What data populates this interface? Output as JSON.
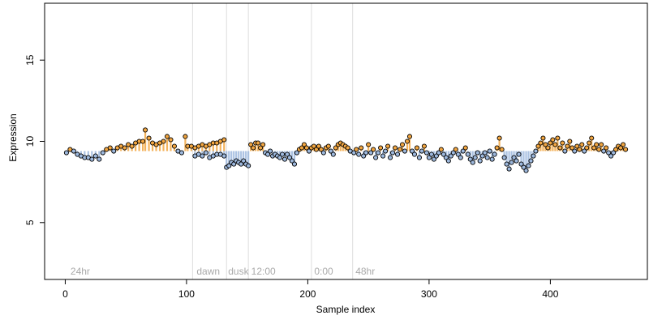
{
  "chart_data": {
    "type": "scatter",
    "xlabel": "Sample index",
    "ylabel": "Expression",
    "xlim": [
      -17,
      480
    ],
    "ylim": [
      1.5,
      18.5
    ],
    "x_ticks": [
      0,
      100,
      200,
      300,
      400
    ],
    "y_ticks": [
      5,
      10,
      15
    ],
    "grid": false,
    "vertical_lines": [
      105,
      133,
      151,
      203,
      237
    ],
    "annotations": [
      {
        "text": "24hr",
        "x": 3
      },
      {
        "text": "dawn",
        "x": 107
      },
      {
        "text": "dusk",
        "x": 133
      },
      {
        "text": "12:00",
        "x": 152
      },
      {
        "text": "0:00",
        "x": 204
      },
      {
        "text": "48hr",
        "x": 238
      }
    ],
    "annotation_y": 2.0,
    "colors": {
      "low": "#9db8dd",
      "high": "#f2a641",
      "outline": "#000000",
      "vline": "#dddddd"
    },
    "series": [
      {
        "marker": "open-circle",
        "points": [
          [
            1,
            9.3
          ],
          [
            4,
            9.5
          ],
          [
            7,
            9.4
          ],
          [
            10,
            9.2
          ],
          [
            13,
            9.1
          ],
          [
            16,
            9.0
          ],
          [
            19,
            9.0
          ],
          [
            22,
            8.9
          ],
          [
            25,
            9.1
          ],
          [
            28,
            8.9
          ],
          [
            31,
            9.3
          ],
          [
            34,
            9.5
          ],
          [
            37,
            9.6
          ],
          [
            40,
            9.4
          ],
          [
            43,
            9.6
          ],
          [
            46,
            9.7
          ],
          [
            49,
            9.6
          ],
          [
            52,
            9.8
          ],
          [
            55,
            9.7
          ],
          [
            58,
            9.9
          ],
          [
            61,
            10.0
          ],
          [
            64,
            10.0
          ],
          [
            66,
            10.7
          ],
          [
            69,
            10.2
          ],
          [
            72,
            9.9
          ],
          [
            75,
            9.8
          ],
          [
            78,
            9.9
          ],
          [
            81,
            10.0
          ],
          [
            84,
            10.3
          ],
          [
            87,
            10.1
          ],
          [
            90,
            9.7
          ],
          [
            93,
            9.4
          ],
          [
            96,
            9.3
          ],
          [
            99,
            10.3
          ],
          [
            101,
            9.7
          ],
          [
            104,
            9.7
          ],
          [
            107,
            9.6
          ],
          [
            110,
            9.7
          ],
          [
            113,
            9.8
          ],
          [
            116,
            9.7
          ],
          [
            119,
            9.8
          ],
          [
            122,
            9.9
          ],
          [
            125,
            9.9
          ],
          [
            128,
            10.0
          ],
          [
            131,
            10.1
          ],
          [
            107,
            9.1
          ],
          [
            110,
            9.2
          ],
          [
            113,
            9.1
          ],
          [
            116,
            9.3
          ],
          [
            119,
            9.0
          ],
          [
            122,
            9.1
          ],
          [
            125,
            9.2
          ],
          [
            128,
            9.2
          ],
          [
            131,
            9.1
          ],
          [
            133,
            8.4
          ],
          [
            135,
            8.5
          ],
          [
            137,
            8.7
          ],
          [
            139,
            8.6
          ],
          [
            141,
            8.8
          ],
          [
            143,
            8.7
          ],
          [
            145,
            8.6
          ],
          [
            147,
            8.8
          ],
          [
            149,
            8.6
          ],
          [
            151,
            8.5
          ],
          [
            153,
            9.8
          ],
          [
            155,
            9.6
          ],
          [
            157,
            9.9
          ],
          [
            159,
            9.9
          ],
          [
            161,
            9.6
          ],
          [
            163,
            9.8
          ],
          [
            165,
            9.3
          ],
          [
            167,
            9.2
          ],
          [
            169,
            9.4
          ],
          [
            171,
            9.1
          ],
          [
            173,
            9.2
          ],
          [
            175,
            9.1
          ],
          [
            177,
            9.0
          ],
          [
            179,
            9.2
          ],
          [
            181,
            8.9
          ],
          [
            183,
            9.2
          ],
          [
            185,
            9.0
          ],
          [
            187,
            8.8
          ],
          [
            189,
            8.6
          ],
          [
            191,
            9.3
          ],
          [
            193,
            9.5
          ],
          [
            195,
            9.6
          ],
          [
            197,
            9.8
          ],
          [
            199,
            9.6
          ],
          [
            201,
            9.4
          ],
          [
            203,
            9.6
          ],
          [
            205,
            9.7
          ],
          [
            207,
            9.5
          ],
          [
            209,
            9.7
          ],
          [
            211,
            9.5
          ],
          [
            213,
            9.3
          ],
          [
            215,
            9.6
          ],
          [
            217,
            9.7
          ],
          [
            219,
            9.4
          ],
          [
            221,
            9.2
          ],
          [
            223,
            9.6
          ],
          [
            225,
            9.8
          ],
          [
            227,
            9.9
          ],
          [
            229,
            9.8
          ],
          [
            231,
            9.7
          ],
          [
            233,
            9.6
          ],
          [
            235,
            9.4
          ],
          [
            238,
            9.3
          ],
          [
            240,
            9.5
          ],
          [
            242,
            9.2
          ],
          [
            244,
            9.6
          ],
          [
            246,
            9.1
          ],
          [
            248,
            9.3
          ],
          [
            250,
            9.8
          ],
          [
            252,
            9.3
          ],
          [
            254,
            9.5
          ],
          [
            256,
            9.0
          ],
          [
            258,
            9.3
          ],
          [
            260,
            9.6
          ],
          [
            262,
            9.1
          ],
          [
            264,
            9.4
          ],
          [
            266,
            9.7
          ],
          [
            268,
            9.0
          ],
          [
            270,
            9.3
          ],
          [
            272,
            9.6
          ],
          [
            274,
            9.2
          ],
          [
            276,
            9.5
          ],
          [
            278,
            9.8
          ],
          [
            280,
            9.4
          ],
          [
            282,
            10.0
          ],
          [
            284,
            10.3
          ],
          [
            286,
            9.4
          ],
          [
            288,
            9.2
          ],
          [
            290,
            9.6
          ],
          [
            292,
            9.0
          ],
          [
            294,
            9.4
          ],
          [
            296,
            9.7
          ],
          [
            298,
            9.3
          ],
          [
            300,
            9.0
          ],
          [
            302,
            9.2
          ],
          [
            304,
            8.9
          ],
          [
            306,
            9.1
          ],
          [
            308,
            9.3
          ],
          [
            310,
            9.5
          ],
          [
            312,
            9.2
          ],
          [
            314,
            9.0
          ],
          [
            316,
            8.8
          ],
          [
            318,
            9.1
          ],
          [
            320,
            9.3
          ],
          [
            322,
            9.5
          ],
          [
            324,
            9.2
          ],
          [
            326,
            9.0
          ],
          [
            328,
            9.4
          ],
          [
            330,
            9.6
          ],
          [
            332,
            9.2
          ],
          [
            334,
            8.9
          ],
          [
            336,
            8.7
          ],
          [
            338,
            9.0
          ],
          [
            340,
            9.3
          ],
          [
            342,
            8.8
          ],
          [
            344,
            9.1
          ],
          [
            346,
            9.3
          ],
          [
            348,
            9.0
          ],
          [
            350,
            9.4
          ],
          [
            352,
            8.9
          ],
          [
            354,
            9.2
          ],
          [
            356,
            9.6
          ],
          [
            358,
            10.2
          ],
          [
            360,
            9.5
          ],
          [
            362,
            9.0
          ],
          [
            364,
            8.6
          ],
          [
            366,
            8.3
          ],
          [
            368,
            8.7
          ],
          [
            370,
            9.0
          ],
          [
            372,
            8.8
          ],
          [
            374,
            9.2
          ],
          [
            376,
            8.6
          ],
          [
            378,
            8.4
          ],
          [
            380,
            8.2
          ],
          [
            382,
            8.5
          ],
          [
            384,
            8.8
          ],
          [
            386,
            9.1
          ],
          [
            388,
            9.4
          ],
          [
            390,
            9.7
          ],
          [
            392,
            9.9
          ],
          [
            394,
            10.2
          ],
          [
            396,
            9.8
          ],
          [
            398,
            9.6
          ],
          [
            400,
            9.9
          ],
          [
            402,
            10.1
          ],
          [
            404,
            9.8
          ],
          [
            406,
            10.2
          ],
          [
            408,
            9.6
          ],
          [
            410,
            9.9
          ],
          [
            412,
            9.4
          ],
          [
            414,
            9.7
          ],
          [
            416,
            10.0
          ],
          [
            418,
            9.6
          ],
          [
            420,
            9.4
          ],
          [
            422,
            9.7
          ],
          [
            424,
            9.5
          ],
          [
            426,
            9.8
          ],
          [
            428,
            9.4
          ],
          [
            430,
            9.6
          ],
          [
            432,
            9.9
          ],
          [
            434,
            10.2
          ],
          [
            436,
            9.6
          ],
          [
            438,
            9.8
          ],
          [
            440,
            9.5
          ],
          [
            442,
            9.8
          ],
          [
            444,
            9.4
          ],
          [
            446,
            9.6
          ],
          [
            448,
            9.3
          ],
          [
            450,
            9.1
          ],
          [
            452,
            9.3
          ],
          [
            454,
            9.5
          ],
          [
            456,
            9.7
          ],
          [
            458,
            9.6
          ],
          [
            460,
            9.8
          ],
          [
            462,
            9.5
          ]
        ]
      }
    ]
  }
}
